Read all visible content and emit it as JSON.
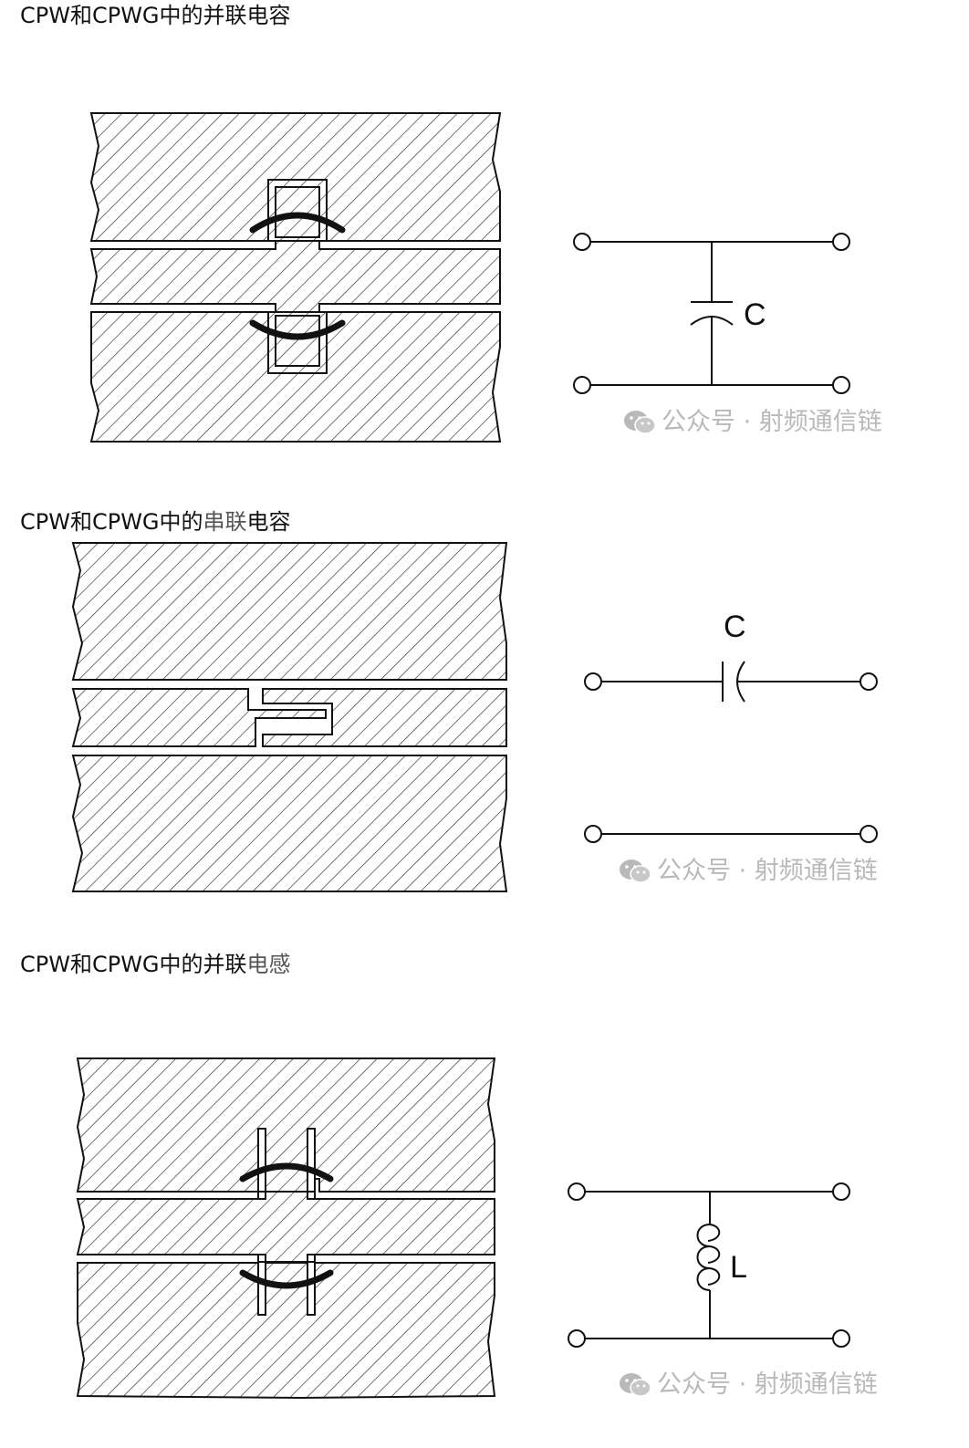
{
  "sections": [
    {
      "heading_prefix": "CPW和CPWG中的",
      "heading_accent": "并联",
      "heading_suffix": "电容",
      "component_label": "C",
      "watermark": "公众号 · 射频通信链"
    },
    {
      "heading_prefix": "CPW和CPWG中的",
      "heading_accent": "串联",
      "heading_suffix": "电容",
      "component_label": "C",
      "watermark": "公众号 · 射频通信链"
    },
    {
      "heading_prefix": "CPW和CPWG中的",
      "heading_accent": "并联",
      "heading_suffix": "电感",
      "component_label": "L",
      "watermark": "公众号 · 射频通信链"
    }
  ],
  "colors": {
    "ink": "#111111",
    "watermark": "#b9b9b9"
  },
  "icons": {
    "watermark_icon": "wechat-icon"
  }
}
